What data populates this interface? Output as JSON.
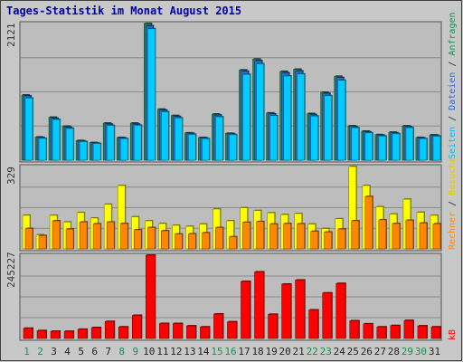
{
  "chart_data": [
    {
      "type": "bar",
      "title": "Tages-Statistik im Monat August 2015",
      "categories": [
        "1",
        "2",
        "3",
        "4",
        "5",
        "6",
        "7",
        "8",
        "9",
        "10",
        "11",
        "12",
        "13",
        "14",
        "15",
        "16",
        "17",
        "18",
        "19",
        "20",
        "21",
        "22",
        "23",
        "24",
        "25",
        "26",
        "27",
        "28",
        "29",
        "30",
        "31"
      ],
      "weekend_days": [
        "1",
        "2",
        "8",
        "9",
        "15",
        "16",
        "22",
        "23",
        "29",
        "30"
      ],
      "ymax_label": "2121",
      "ylim": [
        0,
        2121
      ],
      "series": [
        {
          "name": "Anfragen",
          "color": "#1e8a5a",
          "values": [
            1011,
            359,
            666,
            527,
            304,
            273,
            575,
            352,
            575,
            2121,
            791,
            693,
            423,
            352,
            715,
            416,
            1400,
            1570,
            732,
            1378,
            1411,
            723,
            1054,
            1301,
            532,
            450,
            396,
            434,
            532,
            352,
            392
          ]
        },
        {
          "name": "Dateien",
          "color": "#3366cc",
          "values": [
            998,
            350,
            650,
            510,
            298,
            266,
            560,
            345,
            560,
            2085,
            776,
            678,
            416,
            345,
            700,
            410,
            1380,
            1545,
            718,
            1355,
            1385,
            708,
            1036,
            1282,
            522,
            440,
            388,
            425,
            522,
            345,
            385
          ]
        },
        {
          "name": "Seiten",
          "color": "#00ccff",
          "values": [
            963,
            338,
            630,
            492,
            287,
            258,
            538,
            333,
            541,
            2040,
            750,
            655,
            400,
            333,
            673,
            395,
            1330,
            1495,
            692,
            1306,
            1338,
            684,
            1000,
            1240,
            503,
            424,
            374,
            410,
            503,
            333,
            372
          ]
        }
      ]
    },
    {
      "type": "bar",
      "ymax_label": "329",
      "ylim": [
        0,
        329
      ],
      "series": [
        {
          "name": "Besuche",
          "color": "#ffff00",
          "values": [
            134,
            56,
            134,
            107,
            145,
            123,
            178,
            253,
            128,
            112,
            101,
            94,
            90,
            99,
            159,
            112,
            164,
            153,
            144,
            137,
            141,
            99,
            81,
            120,
            329,
            253,
            168,
            139,
            198,
            146,
            134
          ]
        },
        {
          "name": "Rechner",
          "color": "#ff8800",
          "values": [
            81,
            53,
            112,
            79,
            107,
            100,
            107,
            101,
            76,
            85,
            72,
            59,
            60,
            64,
            85,
            48,
            106,
            109,
            99,
            101,
            100,
            70,
            67,
            79,
            112,
            209,
            116,
            101,
            114,
            103,
            100
          ]
        }
      ]
    },
    {
      "type": "bar",
      "ymax_label": "245227",
      "ylim": [
        0,
        245227
      ],
      "series": [
        {
          "name": "kB",
          "color": "#ff0000",
          "values": [
            30000,
            23000,
            21000,
            21000,
            27000,
            32000,
            50000,
            34000,
            68000,
            245227,
            44000,
            44000,
            37000,
            34000,
            72000,
            49000,
            168000,
            196000,
            71000,
            160000,
            172000,
            84000,
            134000,
            162000,
            52000,
            43000,
            34000,
            38000,
            53000,
            37000,
            34000
          ]
        }
      ]
    }
  ],
  "right_legend_top": {
    "sep": " / "
  },
  "right_legend_mid": {
    "sep": " / "
  }
}
